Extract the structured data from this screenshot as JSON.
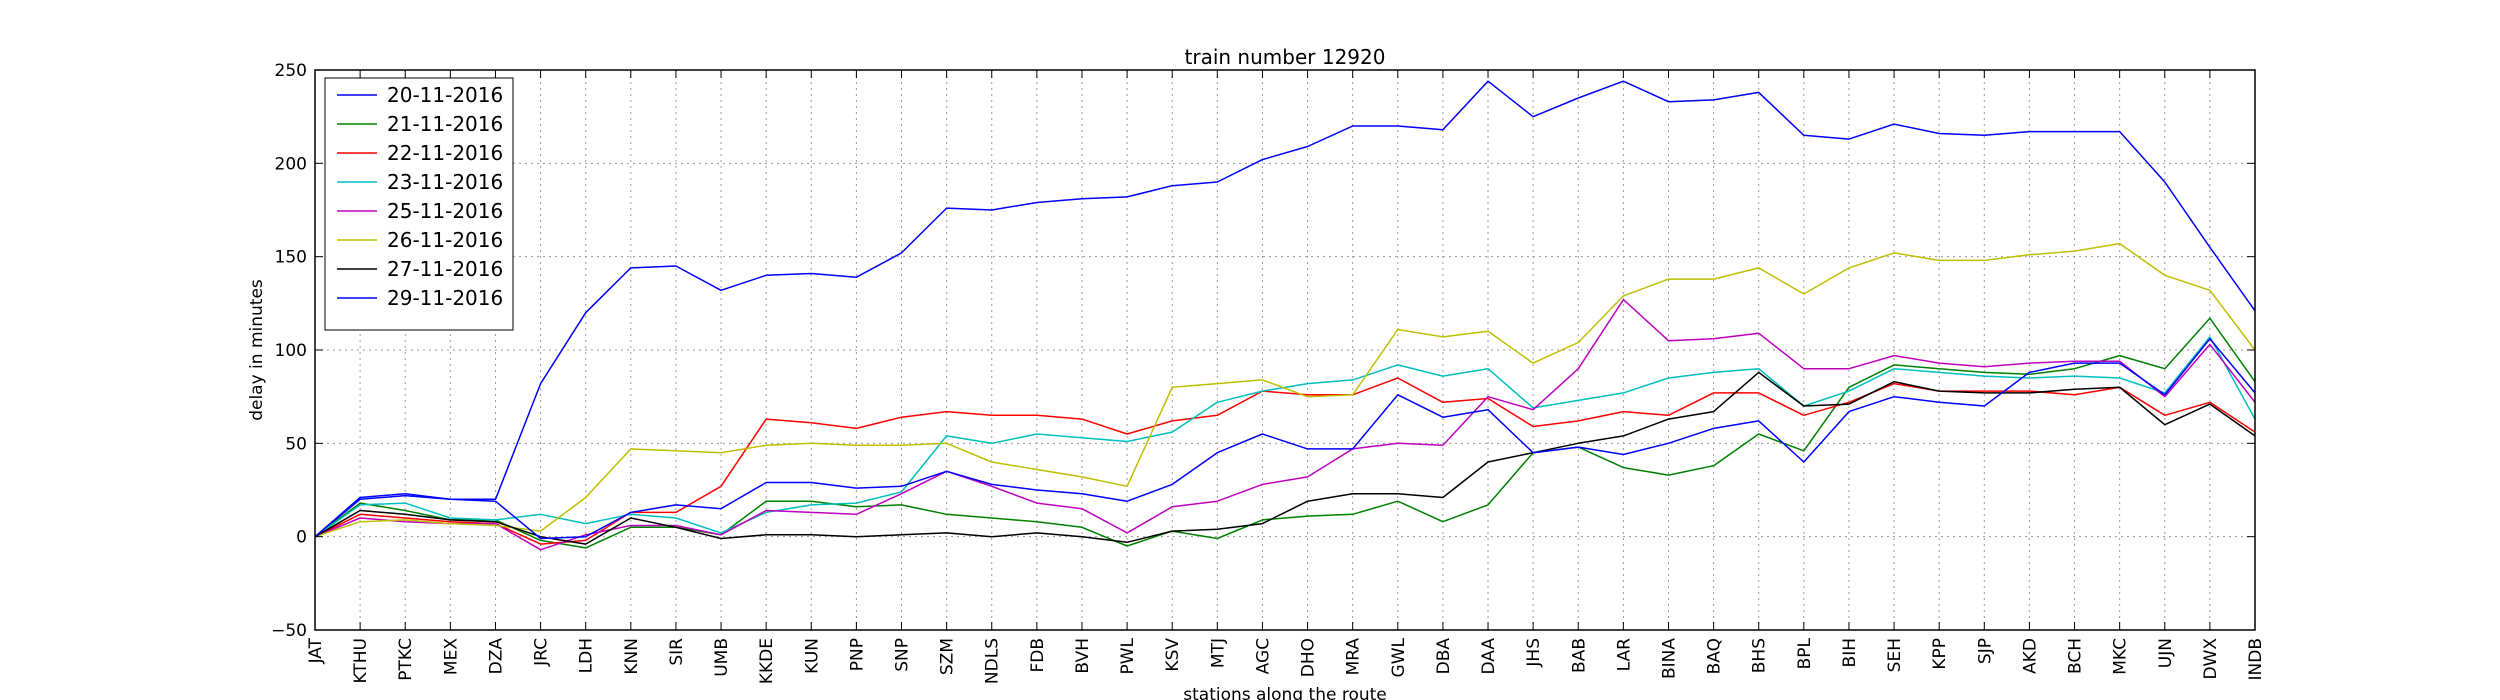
{
  "chart_data": {
    "type": "line",
    "title": "train number 12920",
    "xlabel": "stations along the route",
    "ylabel": "delay in minutes",
    "ylim": [
      -50,
      250
    ],
    "yticks": [
      -50,
      0,
      50,
      100,
      150,
      200,
      250
    ],
    "grid": true,
    "legend_position": "top-left",
    "categories": [
      "JAT",
      "KTHU",
      "PTKC",
      "MEX",
      "DZA",
      "JRC",
      "LDH",
      "KNN",
      "SIR",
      "UMB",
      "KKDE",
      "KUN",
      "PNP",
      "SNP",
      "SZM",
      "NDLS",
      "FDB",
      "BVH",
      "PWL",
      "KSV",
      "MTJ",
      "AGC",
      "DHO",
      "MRA",
      "GWL",
      "DBA",
      "DAA",
      "JHS",
      "BAB",
      "LAR",
      "BINA",
      "BAQ",
      "BHS",
      "BPL",
      "BIH",
      "SEH",
      "KPP",
      "SJP",
      "AKD",
      "BCH",
      "MKC",
      "UJN",
      "DWX",
      "INDB"
    ],
    "series": [
      {
        "name": "20-11-2016",
        "color": "#0000ff",
        "values": [
          0,
          20,
          22,
          20,
          20,
          82,
          120,
          144,
          145,
          132,
          140,
          141,
          139,
          152,
          176,
          175,
          179,
          181,
          182,
          188,
          190,
          202,
          209,
          220,
          220,
          218,
          244,
          225,
          235,
          244,
          233,
          234,
          238,
          215,
          213,
          221,
          216,
          215,
          217,
          217,
          217,
          190,
          155,
          121
        ]
      },
      {
        "name": "21-11-2016",
        "color": "#008000",
        "values": [
          0,
          18,
          14,
          9,
          9,
          -2,
          -6,
          5,
          5,
          1,
          19,
          19,
          16,
          17,
          12,
          10,
          8,
          5,
          -5,
          3,
          -1,
          9,
          11,
          12,
          19,
          8,
          17,
          45,
          48,
          37,
          33,
          38,
          55,
          46,
          80,
          92,
          90,
          88,
          87,
          90,
          97,
          90,
          117,
          83
        ]
      },
      {
        "name": "22-11-2016",
        "color": "#ff0000",
        "values": [
          0,
          12,
          10,
          8,
          7,
          -4,
          -2,
          13,
          13,
          27,
          63,
          61,
          58,
          64,
          67,
          65,
          65,
          63,
          55,
          62,
          65,
          78,
          76,
          76,
          85,
          72,
          74,
          59,
          62,
          67,
          65,
          77,
          77,
          65,
          72,
          82,
          78,
          78,
          78,
          76,
          80,
          65,
          72,
          56
        ]
      },
      {
        "name": "23-11-2016",
        "color": "#00bfbf",
        "values": [
          0,
          17,
          18,
          10,
          9,
          12,
          7,
          12,
          10,
          2,
          13,
          17,
          18,
          24,
          54,
          50,
          55,
          53,
          51,
          56,
          72,
          78,
          82,
          84,
          92,
          86,
          90,
          69,
          73,
          77,
          85,
          88,
          90,
          70,
          78,
          90,
          88,
          86,
          85,
          86,
          85,
          77,
          107,
          63
        ]
      },
      {
        "name": "25-11-2016",
        "color": "#bf00bf",
        "values": [
          0,
          10,
          8,
          7,
          7,
          -7,
          1,
          6,
          6,
          1,
          14,
          13,
          12,
          23,
          35,
          27,
          18,
          15,
          2,
          16,
          19,
          28,
          32,
          47,
          50,
          49,
          75,
          68,
          90,
          127,
          105,
          106,
          109,
          90,
          90,
          97,
          93,
          91,
          93,
          94,
          94,
          75,
          103,
          72
        ]
      },
      {
        "name": "26-11-2016",
        "color": "#bfbf00",
        "values": [
          0,
          8,
          9,
          7,
          6,
          3,
          21,
          47,
          46,
          45,
          49,
          50,
          49,
          49,
          50,
          40,
          36,
          32,
          27,
          80,
          82,
          84,
          75,
          76,
          111,
          107,
          110,
          93,
          104,
          129,
          138,
          138,
          144,
          130,
          144,
          152,
          148,
          148,
          151,
          153,
          157,
          140,
          132,
          100
        ]
      },
      {
        "name": "27-11-2016",
        "color": "#000000",
        "values": [
          0,
          14,
          12,
          9,
          8,
          0,
          -4,
          10,
          5,
          -1,
          1,
          1,
          0,
          1,
          2,
          0,
          2,
          0,
          -3,
          3,
          4,
          7,
          19,
          23,
          23,
          21,
          40,
          45,
          50,
          54,
          63,
          67,
          88,
          70,
          71,
          83,
          78,
          77,
          77,
          79,
          80,
          60,
          71,
          54
        ]
      },
      {
        "name": "29-11-2016",
        "color": "#0000ff",
        "values": [
          0,
          21,
          23,
          20,
          19,
          -1,
          0,
          13,
          17,
          15,
          29,
          29,
          26,
          27,
          35,
          28,
          25,
          23,
          19,
          28,
          45,
          55,
          47,
          47,
          76,
          64,
          68,
          45,
          48,
          44,
          50,
          58,
          62,
          40,
          67,
          75,
          72,
          70,
          88,
          93,
          93,
          76,
          106,
          77
        ]
      }
    ]
  }
}
